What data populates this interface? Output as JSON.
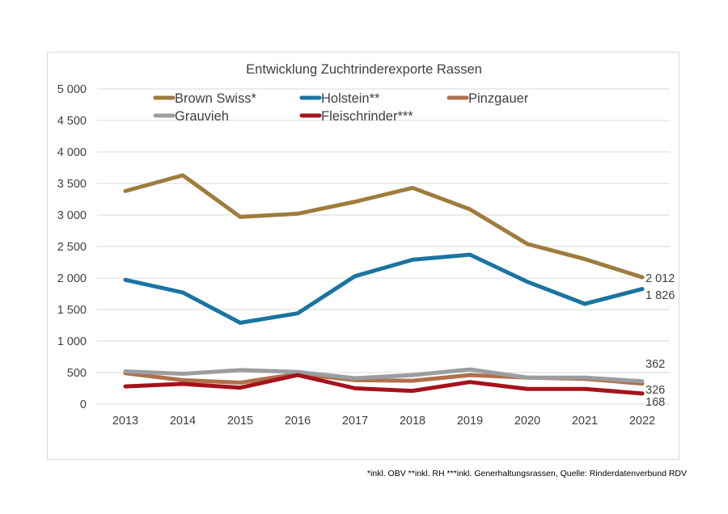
{
  "chart_data": {
    "type": "line",
    "title": "Entwicklung Zuchtrinderexporte Rassen",
    "xlabel": "",
    "ylabel": "",
    "x": [
      "2013",
      "2014",
      "2015",
      "2016",
      "2017",
      "2018",
      "2019",
      "2020",
      "2021",
      "2022"
    ],
    "ylim": [
      0,
      5000
    ],
    "yticks": [
      0,
      500,
      1000,
      1500,
      2000,
      2500,
      3000,
      3500,
      4000,
      4500,
      5000
    ],
    "ytick_labels": [
      "0",
      "500",
      "1 000",
      "1 500",
      "2 000",
      "2 500",
      "3 000",
      "3 500",
      "4 000",
      "4 500",
      "5 000"
    ],
    "grid": "horizontal",
    "legend_position": "top",
    "series": [
      {
        "name": "Brown Swiss*",
        "color": "#9e7c3c",
        "values": [
          3380,
          3630,
          2970,
          3020,
          3210,
          3430,
          3090,
          2540,
          2300,
          2012
        ],
        "end_label": "2 012"
      },
      {
        "name": "Holstein**",
        "color": "#1b74a0",
        "values": [
          1970,
          1770,
          1290,
          1440,
          2030,
          2290,
          2370,
          1940,
          1590,
          1826
        ],
        "end_label": "1 826"
      },
      {
        "name": "Pinzgauer",
        "color": "#b0704c",
        "values": [
          490,
          380,
          340,
          480,
          380,
          370,
          460,
          420,
          400,
          326
        ],
        "end_label": "326"
      },
      {
        "name": "Grauvieh",
        "color": "#9a9ea1",
        "values": [
          520,
          480,
          540,
          510,
          410,
          460,
          550,
          420,
          420,
          362
        ],
        "end_label": "362"
      },
      {
        "name": "Fleischrinder***",
        "color": "#a5121c",
        "values": [
          280,
          320,
          260,
          460,
          250,
          210,
          350,
          240,
          240,
          168
        ],
        "end_label": "168"
      }
    ]
  },
  "footnote": "*inkl. OBV   **inkl. RH ***inkl. Generhaltungsrassen, Quelle: Rinderdatenverbund RDV"
}
